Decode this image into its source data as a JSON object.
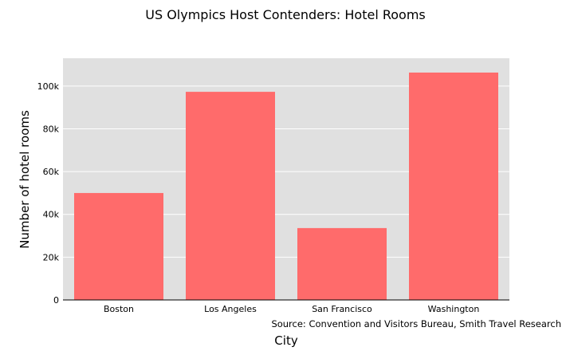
{
  "chart_data": {
    "type": "bar",
    "title": "US Olympics Host Contenders: Hotel Rooms",
    "xlabel": "City",
    "ylabel": "Number of hotel rooms",
    "categories": [
      "Boston",
      "Los Angeles",
      "San Francisco",
      "Washington"
    ],
    "values": [
      50000,
      97300,
      33600,
      106300
    ],
    "ylim": [
      0,
      113000
    ],
    "yticks": [
      0,
      20000,
      40000,
      60000,
      80000,
      100000
    ],
    "ytick_labels": [
      "0",
      "20k",
      "40k",
      "60k",
      "80k",
      "100k"
    ],
    "grid": true,
    "bar_color": "#ff6b6b",
    "plot_background": "#e0e0e0",
    "annotation": "Source: Convention and Visitors Bureau, Smith Travel Research"
  }
}
